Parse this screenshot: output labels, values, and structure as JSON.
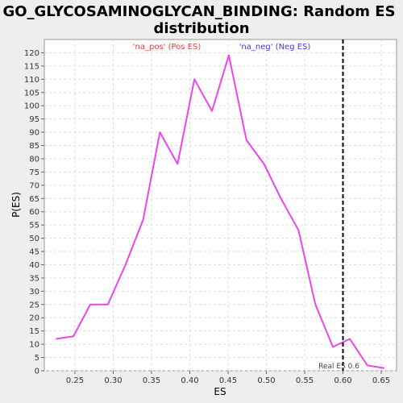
{
  "chart_data": {
    "type": "line",
    "title_lines": [
      "GO_GLYCOSAMINOGLYCAN_BINDING: Random ES",
      "distribution"
    ],
    "xlabel": "ES",
    "ylabel": "P(ES)",
    "xlim": [
      0.21,
      0.67
    ],
    "ylim": [
      0,
      125
    ],
    "x_ticks": [
      0.25,
      0.3,
      0.35,
      0.4,
      0.45,
      0.5,
      0.55,
      0.6,
      0.65
    ],
    "x_tick_labels": [
      "0.25",
      "0.30",
      "0.35",
      "0.40",
      "0.45",
      "0.50",
      "0.55",
      "0.60",
      "0.65"
    ],
    "y_ticks": [
      0,
      5,
      10,
      15,
      20,
      25,
      30,
      35,
      40,
      45,
      50,
      55,
      60,
      65,
      70,
      75,
      80,
      85,
      90,
      95,
      100,
      105,
      110,
      115,
      120
    ],
    "y_tick_labels": [
      "0",
      "5",
      "10",
      "15",
      "20",
      "25",
      "30",
      "35",
      "40",
      "45",
      "50",
      "55",
      "60",
      "65",
      "70",
      "75",
      "80",
      "85",
      "90",
      "95",
      "100",
      "105",
      "110",
      "115",
      "120"
    ],
    "grid": true,
    "legend": [
      {
        "label": "'na_pos' (Pos ES)",
        "color": "#e04040"
      },
      {
        "label": "'na_neg' (Neg ES)",
        "color": "#4040d0"
      }
    ],
    "series": [
      {
        "color": "#ee44ee",
        "x": [
          0.225,
          0.248,
          0.27,
          0.293,
          0.316,
          0.339,
          0.361,
          0.384,
          0.406,
          0.429,
          0.451,
          0.474,
          0.497,
          0.519,
          0.542,
          0.564,
          0.587,
          0.609,
          0.632,
          0.654
        ],
        "y": [
          12,
          13,
          25,
          25,
          40,
          57,
          90,
          78,
          110,
          98,
          119,
          87,
          78,
          65,
          53,
          25,
          9,
          12,
          2,
          1
        ]
      }
    ],
    "vertical_marker": {
      "x": 0.6,
      "label": "Real ES 0.6",
      "color": "#000000"
    }
  }
}
